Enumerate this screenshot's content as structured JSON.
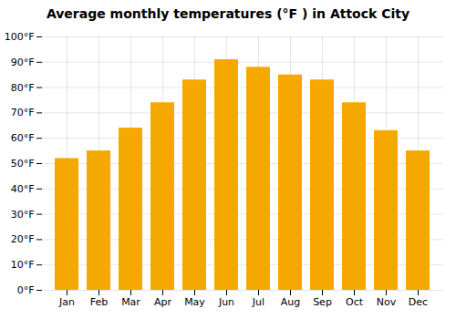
{
  "chart_data": {
    "type": "bar",
    "title": "Average monthly temperatures (°F ) in Attock City",
    "categories": [
      "Jan",
      "Feb",
      "Mar",
      "Apr",
      "May",
      "Jun",
      "Jul",
      "Aug",
      "Sep",
      "Oct",
      "Nov",
      "Dec"
    ],
    "values": [
      52,
      55,
      64,
      74,
      83,
      91,
      88,
      85,
      83,
      74,
      63,
      55
    ],
    "color": "#F5A800",
    "ylim": [
      0,
      100
    ],
    "yticks": [
      {
        "value": 0,
        "label": "0°F"
      },
      {
        "value": 10,
        "label": "10°F"
      },
      {
        "value": 20,
        "label": "20°F"
      },
      {
        "value": 30,
        "label": "30°F"
      },
      {
        "value": 40,
        "label": "40°F"
      },
      {
        "value": 50,
        "label": "50°F"
      },
      {
        "value": 60,
        "label": "60°F"
      },
      {
        "value": 70,
        "label": "70°F"
      },
      {
        "value": 80,
        "label": "80°F"
      },
      {
        "value": 90,
        "label": "90°F"
      },
      {
        "value": 100,
        "label": "100°F"
      }
    ],
    "grid": true
  }
}
